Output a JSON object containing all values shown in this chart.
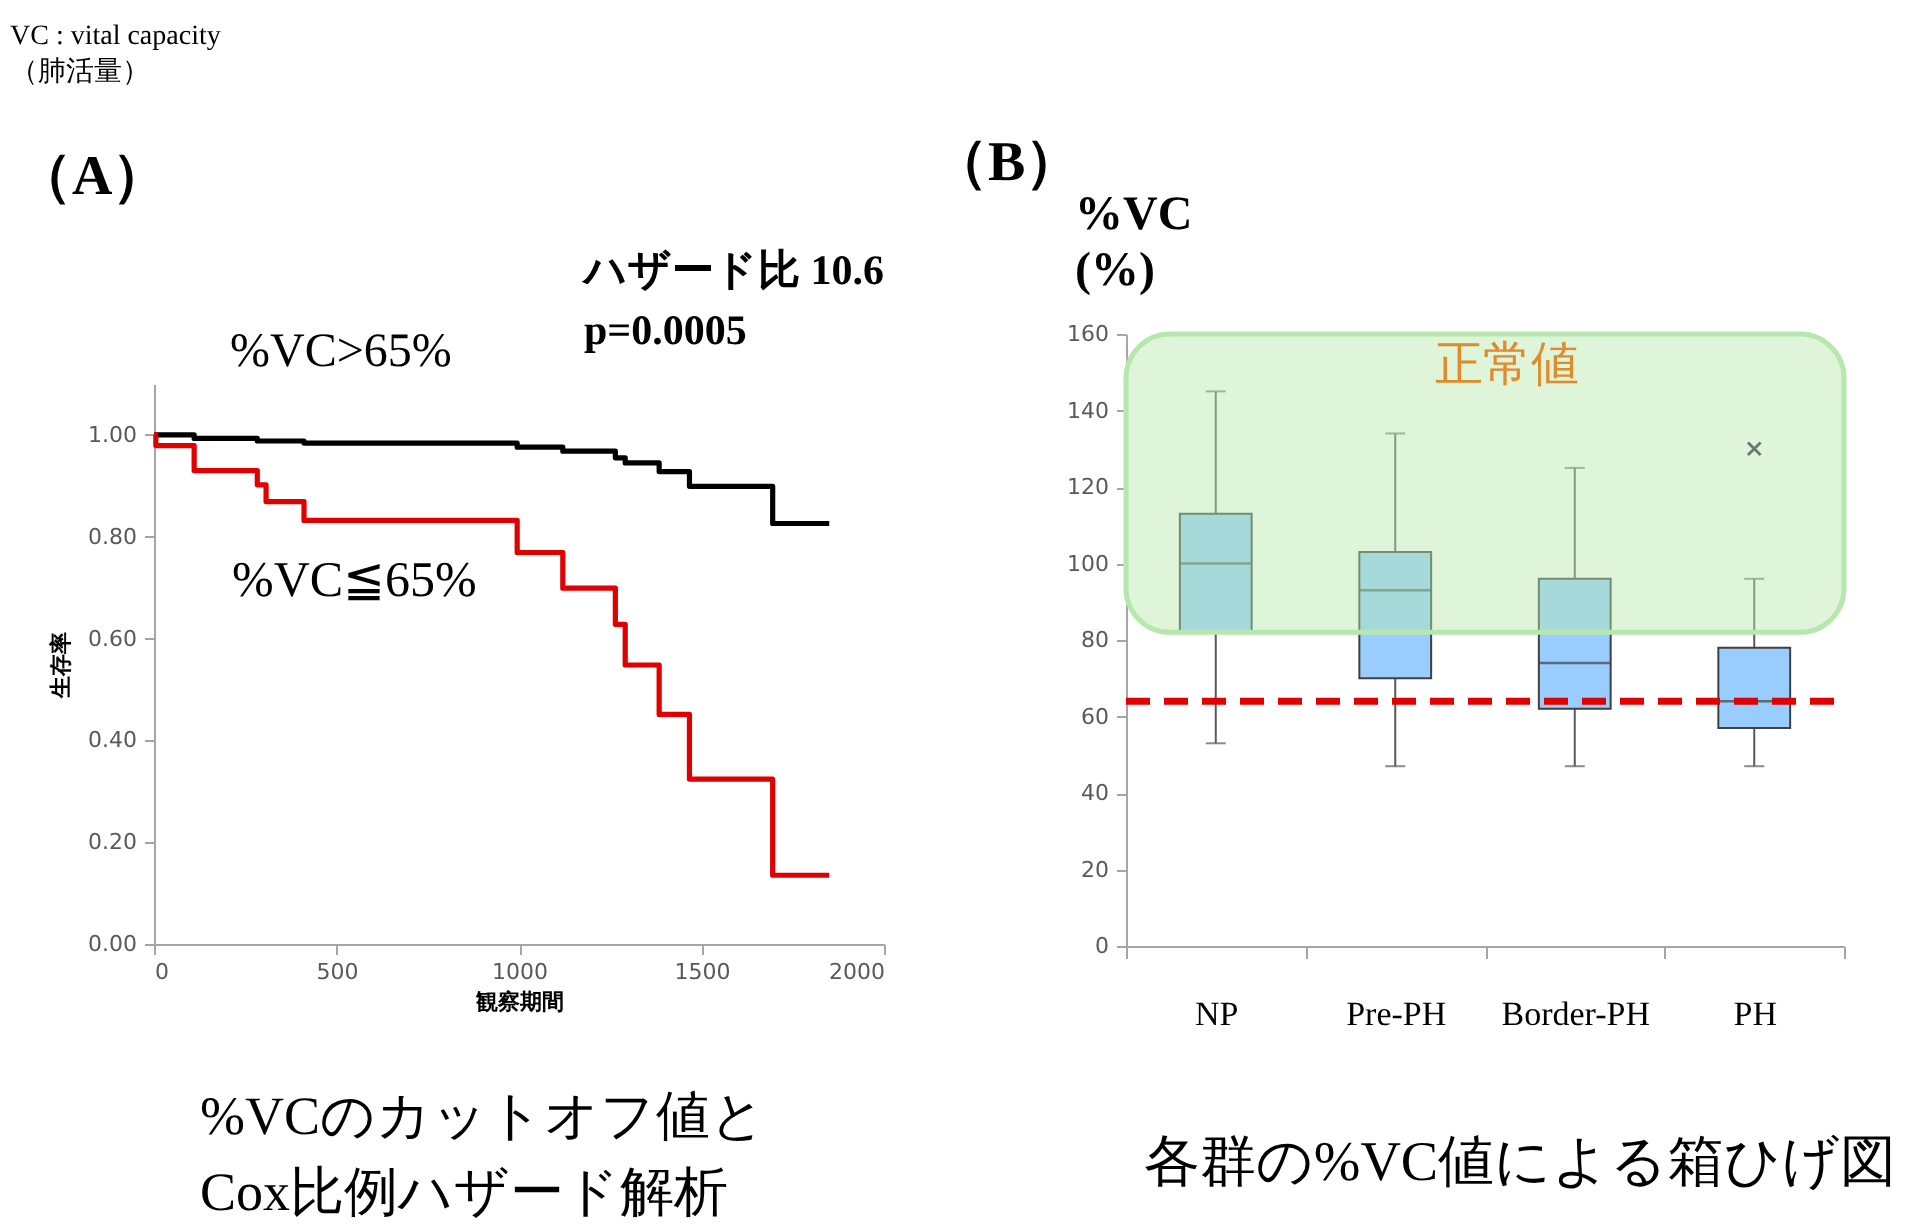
{
  "chart_data": [
    {
      "type": "step",
      "title": "（A）",
      "xlabel": "観察期間",
      "ylabel": "生存率",
      "xlim": [
        0,
        2000
      ],
      "xticks": [
        0,
        500,
        1000,
        1500,
        2000
      ],
      "ylim": [
        0,
        1.1
      ],
      "yticks": [
        {
          "value": 0,
          "label": "0.00"
        },
        {
          "value": 0.2,
          "label": "0.20"
        },
        {
          "value": 0.4,
          "label": "0.40"
        },
        {
          "value": 0.6,
          "label": "0.60"
        },
        {
          "value": 0.8,
          "label": "0.80"
        },
        {
          "value": 1,
          "label": "1.00"
        }
      ],
      "series": [
        {
          "name": "%VC>65%",
          "color": "#000000",
          "x": [
            0,
            110,
            283,
            411,
            995,
            1120,
            1264,
            1291,
            1384,
            1467,
            1695,
            1850
          ],
          "values": [
            1.0,
            0.993,
            0.988,
            0.984,
            0.976,
            0.968,
            0.955,
            0.945,
            0.928,
            0.899,
            0.826,
            0.826
          ]
        },
        {
          "name": "%VC≦65%",
          "color": "#e00000",
          "x": [
            0,
            5,
            110,
            283,
            307,
            411,
            995,
            1120,
            1264,
            1291,
            1384,
            1467,
            1695,
            1850
          ],
          "values": [
            1.0,
            0.979,
            0.93,
            0.902,
            0.869,
            0.832,
            0.769,
            0.699,
            0.628,
            0.548,
            0.451,
            0.324,
            0.135,
            0.135
          ]
        }
      ],
      "annotations": [
        "VC : vital capacity\n（肺活量）",
        "ハザード比 10.6\np=0.0005",
        "%VCのカットオフ値と\nCox比例ハザード解析"
      ]
    },
    {
      "type": "box",
      "title": "（B）",
      "ylabel": "%VC\n(%)",
      "categories": [
        "NP",
        "Pre-PH",
        "Border-PH",
        "PH"
      ],
      "color": "#99ccff",
      "boxes": [
        {
          "low": 53,
          "q1": 82,
          "median": 100,
          "q3": 113,
          "high": 145
        },
        {
          "low": 47,
          "q1": 70,
          "median": 93,
          "q3": 103,
          "high": 134
        },
        {
          "low": 47,
          "q1": 62,
          "median": 74,
          "q3": 96,
          "high": 125
        },
        {
          "low": 47,
          "q1": 57,
          "median": 64,
          "q3": 78,
          "high": 96,
          "outliers": [
            130
          ]
        }
      ],
      "ylim": [
        0,
        160
      ],
      "yticks": [
        0,
        20,
        40,
        60,
        80,
        100,
        120,
        140,
        160
      ],
      "bands": [
        {
          "axis": "y",
          "from": 82,
          "to": 160,
          "label": "正常値",
          "color": "#b6e8ae"
        }
      ],
      "ref_lines": [
        {
          "axis": "y",
          "value": 64,
          "color": "#e00000",
          "line_style": "dashed"
        }
      ],
      "annotations": [
        "各群の%VC値による箱ひげ図"
      ]
    }
  ]
}
